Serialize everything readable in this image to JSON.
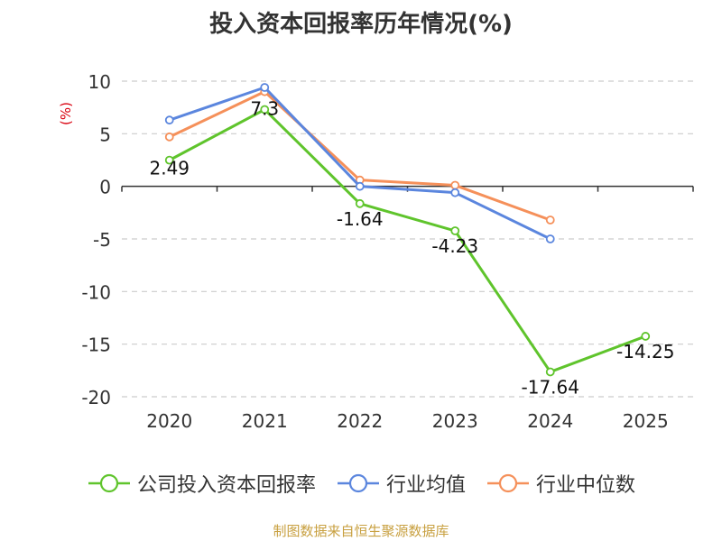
{
  "chart_data": {
    "type": "line",
    "title": "投入资本回报率历年情况(%)",
    "ylabel": "(%)",
    "xlabel": "",
    "categories": [
      "2020",
      "2021",
      "2022",
      "2023",
      "2024",
      "2025"
    ],
    "ylim": [
      -20,
      10
    ],
    "yticks": [
      10,
      5,
      0,
      -5,
      -10,
      -15,
      -20
    ],
    "grid": true,
    "legend_position": "bottom",
    "series": [
      {
        "name": "公司投入资本回报率",
        "color": "#5fc42c",
        "values": [
          2.49,
          7.3,
          -1.64,
          -4.23,
          -17.64,
          -14.25
        ],
        "labels": [
          "2.49",
          "7.3",
          "-1.64",
          "-4.23",
          "-17.64",
          "-14.25"
        ]
      },
      {
        "name": "行业均值",
        "color": "#5b86de",
        "values": [
          6.3,
          9.4,
          0.0,
          -0.6,
          -5.0,
          null
        ]
      },
      {
        "name": "行业中位数",
        "color": "#f5905a",
        "values": [
          4.7,
          9.0,
          0.6,
          0.1,
          -3.2,
          null
        ]
      }
    ]
  },
  "source": "制图数据来自恒生聚源数据库"
}
